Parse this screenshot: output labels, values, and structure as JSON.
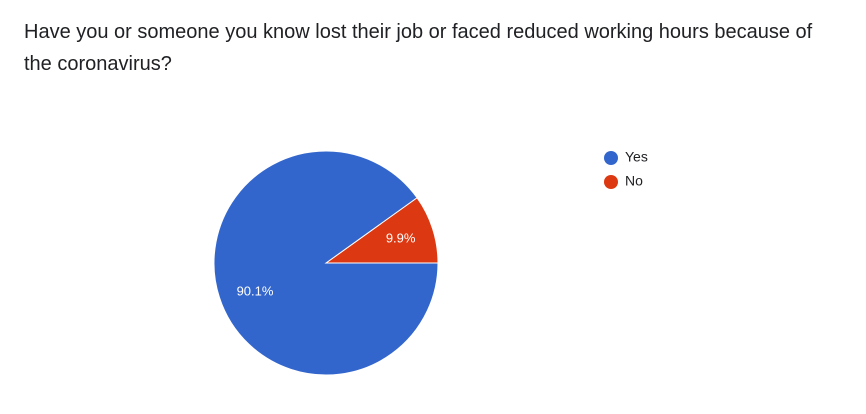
{
  "question": {
    "text": "Have you or someone you know lost their job or faced reduced working hours because of the coronavirus?"
  },
  "chart_data": {
    "type": "pie",
    "title": "",
    "slices": [
      {
        "label": "Yes",
        "value": 90.1,
        "display": "90.1%",
        "color": "#3366cc"
      },
      {
        "label": "No",
        "value": 9.9,
        "display": "9.9%",
        "color": "#dc3912"
      }
    ],
    "start_angle_deg": 0,
    "direction": "clockwise-from-3-oclock",
    "legend_position": "right"
  }
}
